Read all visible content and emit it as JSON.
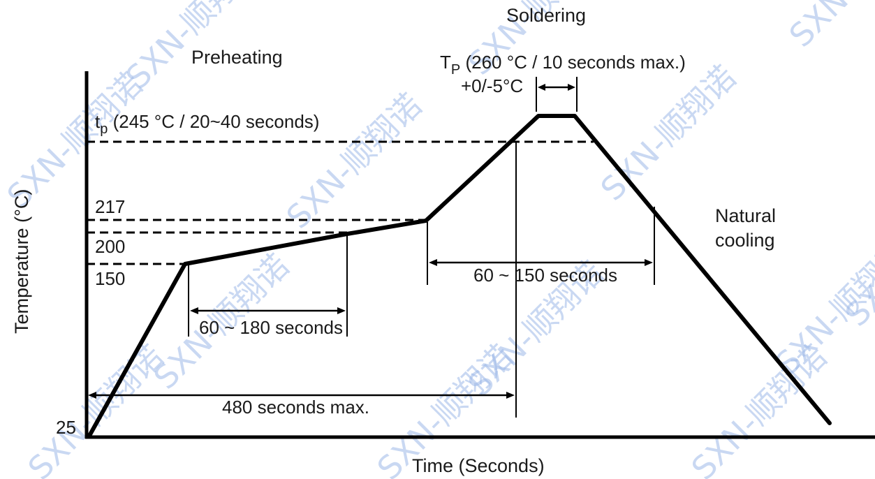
{
  "diagram": {
    "y_axis_label": "Temperature (°C)",
    "x_axis_label": "Time (Seconds)",
    "phase_preheating": "Preheating",
    "phase_soldering": "Soldering",
    "phase_cooling_line1": "Natural",
    "phase_cooling_line2": "cooling",
    "temp_labels": {
      "t25": "25",
      "t150": "150",
      "t200": "200",
      "t217": "217"
    },
    "tp_label": {
      "main": "t",
      "sub": "p",
      "rest": " (245 °C / 20~40 seconds)"
    },
    "Tp_label": {
      "main": "T",
      "sub": "P",
      "rest": " (260 °C / 10 seconds max.)"
    },
    "Tp_tolerance": "+0/-5°C",
    "dimensions": {
      "preheat": "60 ~ 180 seconds",
      "above_liquidus": "60 ~ 150 seconds",
      "total": "480 seconds max."
    }
  },
  "watermark": {
    "text": "SXN-顺翔诺"
  },
  "colors": {
    "line": "#000000",
    "watermark": "#9db9e8"
  }
}
